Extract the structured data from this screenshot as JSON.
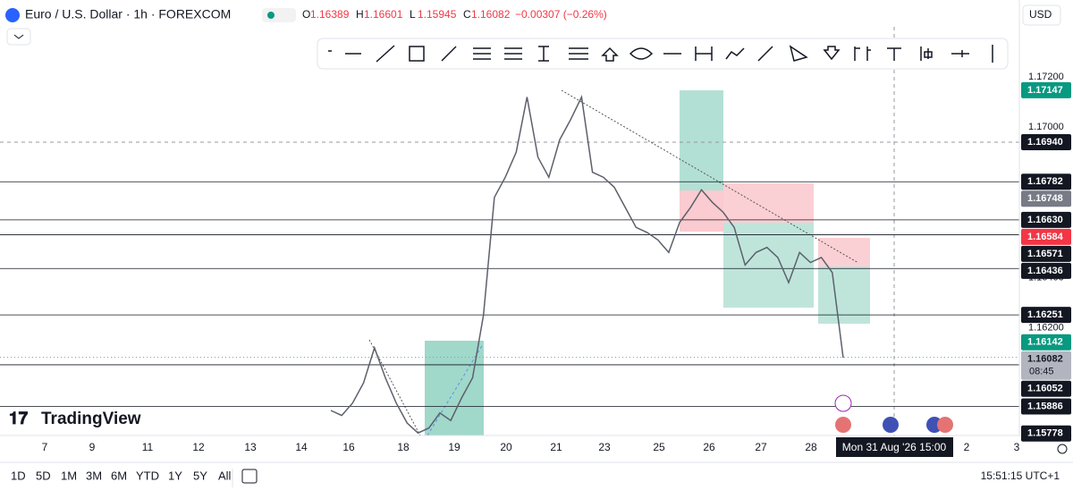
{
  "header": {
    "symbol": "Euro / U.S. Dollar · 1h · FOREXCOM",
    "ohlc": [
      {
        "key": "O",
        "value": "1.16389"
      },
      {
        "key": "H",
        "value": "1.16601"
      },
      {
        "key": "L",
        "value": "1.15945"
      },
      {
        "key": "C",
        "value": "1.16082"
      }
    ],
    "change": "−0.00307 (−0.26%)",
    "currency": "USD"
  },
  "chart_data": {
    "type": "line",
    "color": "#5d606b",
    "values": [
      1.1587,
      1.1585,
      1.159,
      1.1598,
      1.1612,
      1.16,
      1.159,
      1.1582,
      1.1578,
      1.158,
      1.1586,
      1.1583,
      1.1592,
      1.16,
      1.1625,
      1.1672,
      1.168,
      1.169,
      1.1712,
      1.1688,
      1.168,
      1.1695,
      1.1703,
      1.1712,
      1.1682,
      1.168,
      1.1676,
      1.1668,
      1.166,
      1.1658,
      1.1655,
      1.165,
      1.1662,
      1.1668,
      1.1675,
      1.167,
      1.1666,
      1.166,
      1.1645,
      1.165,
      1.1652,
      1.1648,
      1.1638,
      1.165,
      1.1646,
      1.1648,
      1.1642,
      1.1608
    ],
    "ylim": [
      1.1577,
      1.174
    ],
    "yticks": [
      {
        "value": 1.172,
        "label": "1.17200"
      },
      {
        "value": 1.17,
        "label": "1.17000"
      },
      {
        "value": 1.164,
        "label": "1.16400"
      },
      {
        "value": 1.162,
        "label": "1.16200"
      }
    ],
    "price_tags": [
      {
        "value": 1.17147,
        "label": "1.17147",
        "color": "#089981"
      },
      {
        "value": 1.1694,
        "label": "1.16940",
        "color": "#131722",
        "line": "dashed"
      },
      {
        "value": 1.16782,
        "label": "1.16782",
        "color": "#131722",
        "line": "solid"
      },
      {
        "value": 1.16748,
        "label": "1.16748",
        "color": "#787b86"
      },
      {
        "value": 1.1663,
        "label": "1.16630",
        "color": "#131722",
        "line": "solid"
      },
      {
        "value": 1.16584,
        "label": "1.16584",
        "color": "#f23645"
      },
      {
        "value": 1.16571,
        "label": "1.16571",
        "color": "#131722",
        "line": "solid"
      },
      {
        "value": 1.16436,
        "label": "1.16436",
        "color": "#131722",
        "line": "solid"
      },
      {
        "value": 1.16251,
        "label": "1.16251",
        "color": "#131722",
        "line": "solid"
      },
      {
        "value": 1.16142,
        "label": "1.16142",
        "color": "#089981"
      },
      {
        "value": 1.16082,
        "label": "1.16082",
        "color": "#b2b5be",
        "line": "dotted",
        "sublabel": "08:45"
      },
      {
        "value": 1.16052,
        "label": "1.16052",
        "color": "#131722",
        "line": "solid"
      },
      {
        "value": 1.15886,
        "label": "1.15886",
        "color": "#131722",
        "line": "solid"
      },
      {
        "value": 1.15778,
        "label": "1.15778",
        "color": "#131722"
      }
    ],
    "date_labels": [
      "7",
      "9",
      "11",
      "12",
      "13",
      "14",
      "16",
      "18",
      "19",
      "20",
      "21",
      "23",
      "25",
      "26",
      "27",
      "28",
      "2",
      "3"
    ],
    "crosshair_label": "Mon 31 Aug '26  15:00"
  },
  "brand": "TradingView",
  "timeframes": [
    "1D",
    "5D",
    "1M",
    "3M",
    "6M",
    "YTD",
    "1Y",
    "5Y",
    "All"
  ],
  "clock": "15:51:15 UTC+1"
}
